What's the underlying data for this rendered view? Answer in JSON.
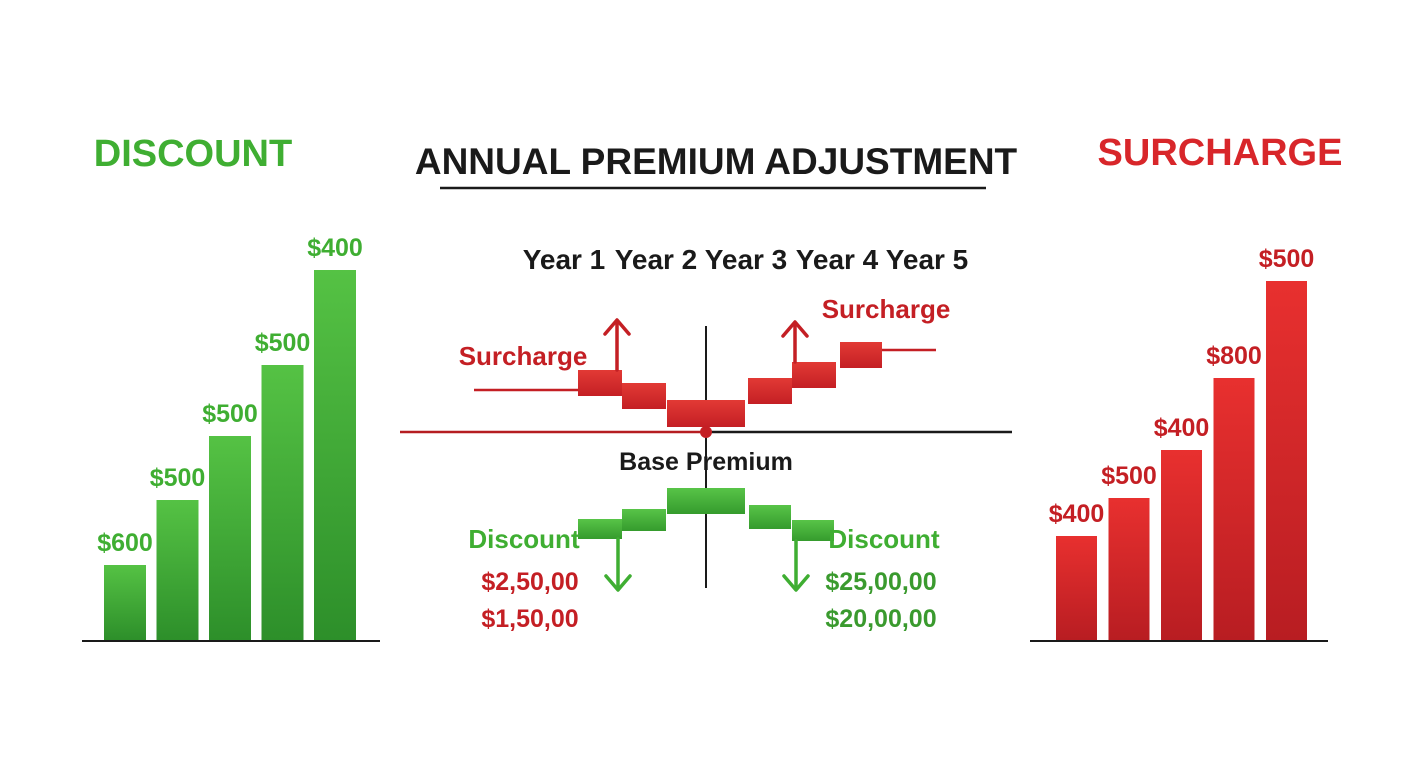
{
  "center": {
    "title": "ANNUAL PREMIUM ADJUSTMENT",
    "years": [
      "Year 1",
      "Year 2",
      "Year 3",
      "Year 4",
      "Year 5"
    ],
    "base_label": "Base Premium",
    "surcharge_left_label": "Surcharge",
    "surcharge_right_label": "Surcharge",
    "discount_left_label": "Discount",
    "discount_right_label": "Discount",
    "discount_left_values": [
      "$2,50,00",
      "$1,50,00"
    ],
    "discount_right_values": [
      "$25,00,00",
      "$20,00,00"
    ]
  },
  "colors": {
    "green": "#3fae32",
    "green_dark": "#2a8a24",
    "red": "#d8262a",
    "red_dark": "#b51d21",
    "ink": "#1a1a1a"
  },
  "chart_data": [
    {
      "type": "bar",
      "title": "DISCOUNT",
      "categories": [
        "",
        "",
        "",
        "",
        ""
      ],
      "values": [
        600,
        500,
        500,
        500,
        400
      ],
      "labels": [
        "$600",
        "$500",
        "$500",
        "$500",
        "$400"
      ]
    },
    {
      "type": "bar",
      "title": "SURCHARGE",
      "categories": [
        "",
        "",
        "",
        "",
        ""
      ],
      "values": [
        400,
        500,
        400,
        800,
        500
      ],
      "labels": [
        "$400",
        "$500",
        "$400",
        "$800",
        "$500"
      ]
    }
  ]
}
